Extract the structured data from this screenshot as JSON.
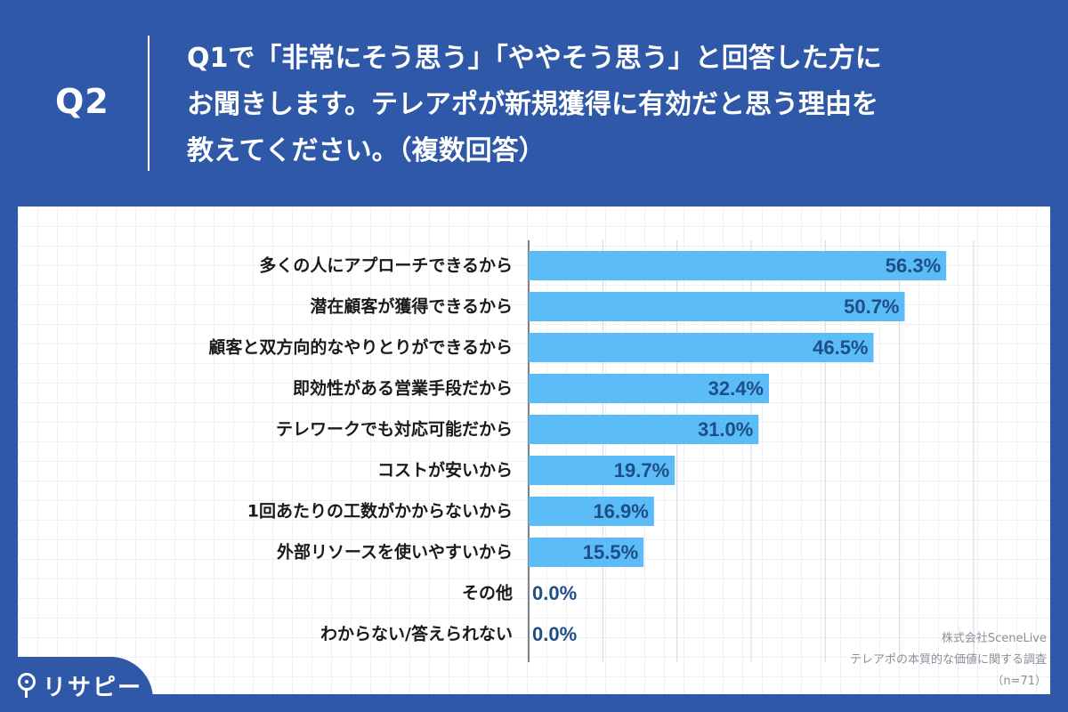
{
  "header": {
    "question_number": "Q2",
    "question_lines": [
      "Q1で「非常にそう思う」「ややそう思う」と回答した方に",
      "お聞きします。テレアポが新規獲得に有効だと思う理由を",
      "教えてください。（複数回答）"
    ]
  },
  "brand": {
    "name": "リサピー"
  },
  "source": {
    "company": "株式会社SceneLive",
    "survey": "テレアポの本質的な価値に関する調査",
    "sample": "（n=71）"
  },
  "colors": {
    "header_bg": "#2f58a8",
    "bar": "#5bbcf7",
    "value_text": "#1e4e86",
    "label_text": "#1a1a1a"
  },
  "chart_data": {
    "type": "bar",
    "orientation": "horizontal",
    "categories": [
      "多くの人にアプローチできるから",
      "潜在顧客が獲得できるから",
      "顧客と双方向的なやりとりができるから",
      "即効性がある営業手段だから",
      "テレワークでも対応可能だから",
      "コストが安いから",
      "1回あたりの工数がかからないから",
      "外部リソースを使いやすいから",
      "その他",
      "わからない/答えられない"
    ],
    "values": [
      56.3,
      50.7,
      46.5,
      32.4,
      31.0,
      19.7,
      16.9,
      15.5,
      0.0,
      0.0
    ],
    "value_labels": [
      "56.3%",
      "50.7%",
      "46.5%",
      "32.4%",
      "31.0%",
      "19.7%",
      "16.9%",
      "15.5%",
      "0.0%",
      "0.0%"
    ],
    "xlim": [
      0,
      60
    ],
    "grid": true
  }
}
